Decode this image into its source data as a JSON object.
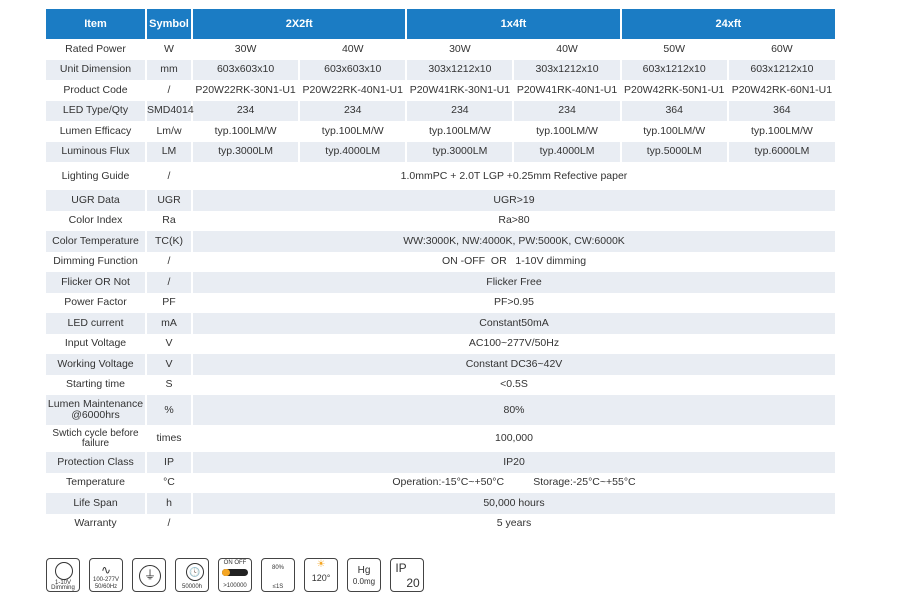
{
  "header": [
    "Item",
    "Symbol",
    "2X2ft",
    "1x4ft",
    "24xft"
  ],
  "rows": [
    {
      "item": "Rated Power",
      "symbol": "W",
      "values": [
        "30W",
        "40W",
        "30W",
        "40W",
        "50W",
        "60W"
      ]
    },
    {
      "item": "Unit Dimension",
      "symbol": "mm",
      "values": [
        "603x603x10",
        "603x603x10",
        "303x1212x10",
        "303x1212x10",
        "603x1212x10",
        "603x1212x10"
      ]
    },
    {
      "item": "Product Code",
      "symbol": "/",
      "values": [
        "P20W22RK-30N1-U1",
        "P20W22RK-40N1-U1",
        "P20W41RK-30N1-U1",
        "P20W41RK-40N1-U1",
        "P20W42RK-50N1-U1",
        "P20W42RK-60N1-U1"
      ]
    },
    {
      "item": "LED Type/Qty",
      "symbol": "SMD4014",
      "values": [
        "234",
        "234",
        "234",
        "234",
        "364",
        "364"
      ]
    },
    {
      "item": "Lumen Efficacy",
      "symbol": "Lm/w",
      "values": [
        "typ.100LM/W",
        "typ.100LM/W",
        "typ.100LM/W",
        "typ.100LM/W",
        "typ.100LM/W",
        "typ.100LM/W"
      ]
    },
    {
      "item": "Luminous Flux",
      "symbol": "LM",
      "values": [
        "typ.3000LM",
        "typ.4000LM",
        "typ.3000LM",
        "typ.4000LM",
        "typ.5000LM",
        "typ.6000LM"
      ]
    },
    {
      "item": "Lighting Guide",
      "symbol": "/",
      "value": "1.0mmPC + 2.0T LGP +0.25mm Refective paper"
    },
    {
      "item": "UGR Data",
      "symbol": "UGR",
      "value": "UGR>19"
    },
    {
      "item": "Color Index",
      "symbol": "Ra",
      "value": "Ra>80"
    },
    {
      "item": "Color Temperature",
      "symbol": "TC(K)",
      "value": "WW:3000K, NW:4000K, PW:5000K, CW:6000K"
    },
    {
      "item": "Dimming Function",
      "symbol": "/",
      "value": "ON -OFF  OR   1-10V dimming"
    },
    {
      "item": "Flicker OR Not",
      "symbol": "/",
      "value": "Flicker Free"
    },
    {
      "item": "Power Factor",
      "symbol": "PF",
      "value": "PF>0.95"
    },
    {
      "item": "LED current",
      "symbol": "mA",
      "value": "Constant50mA"
    },
    {
      "item": "Input Voltage",
      "symbol": "V",
      "value": "AC100~277V/50Hz"
    },
    {
      "item": "Working Voltage",
      "symbol": "V",
      "value": "Constant DC36~42V"
    },
    {
      "item": "Starting time",
      "symbol": "S",
      "value": "<0.5S"
    },
    {
      "item": "Lumen Maintenance @6000hrs",
      "symbol": "%",
      "value": "80%"
    },
    {
      "item": "Swtich cycle before failure",
      "symbol": "times",
      "value": "100,000"
    },
    {
      "item": "Protection Class",
      "symbol": "IP",
      "value": "IP20"
    },
    {
      "item": "Temperature",
      "symbol": "°C",
      "value": "Operation:-15°C~+50°C          Storage:-25°C~+55°C"
    },
    {
      "item": "Life Span",
      "symbol": "h",
      "value": "50,000 hours"
    },
    {
      "item": "Warranty",
      "symbol": "/",
      "value": "5 years"
    }
  ],
  "icons": [
    {
      "name": "dimming-icon",
      "text": [
        "1-10V",
        "Dimming"
      ]
    },
    {
      "name": "voltage-wave-icon",
      "text": [
        "100-277V",
        "50/60Hz"
      ]
    },
    {
      "name": "ground-icon",
      "text": []
    },
    {
      "name": "lifetime-icon",
      "text": [
        "50000h"
      ]
    },
    {
      "name": "switch-cycle-icon",
      "text": [
        "ON  OFF",
        ">100000"
      ]
    },
    {
      "name": "startup-icon",
      "text": [
        "80%",
        "≤1S"
      ]
    },
    {
      "name": "beam-angle-icon",
      "text": [
        "120°"
      ]
    },
    {
      "name": "mercury-icon",
      "text": [
        "Hg",
        "0.0mg"
      ]
    },
    {
      "name": "ip-rating-icon",
      "text": [
        "IP",
        "20"
      ]
    }
  ],
  "colors": {
    "header": "#1b7cc4",
    "stripe": "#e9edf3"
  }
}
